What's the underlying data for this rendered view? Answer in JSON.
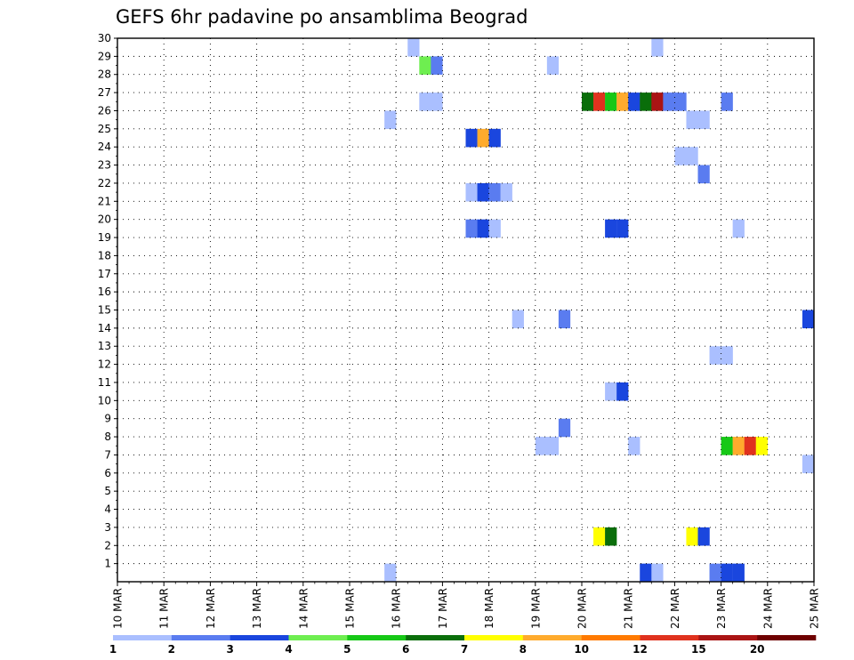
{
  "chart_data": {
    "type": "heatmap",
    "title": "GEFS 6hr padavine po ansamblima Beograd",
    "xlabel": "",
    "ylabel": "",
    "x_tick_labels": [
      "10 MAR",
      "11 MAR",
      "12 MAR",
      "13 MAR",
      "14 MAR",
      "15 MAR",
      "16 MAR",
      "17 MAR",
      "18 MAR",
      "19 MAR",
      "20 MAR",
      "21 MAR",
      "22 MAR",
      "23 MAR",
      "24 MAR",
      "25 MAR"
    ],
    "xlim": [
      0,
      60
    ],
    "ylim": [
      0,
      30
    ],
    "y_ticks": [
      1,
      2,
      3,
      4,
      5,
      6,
      7,
      8,
      9,
      10,
      11,
      12,
      13,
      14,
      15,
      16,
      17,
      18,
      19,
      20,
      21,
      22,
      23,
      24,
      25,
      26,
      27,
      28,
      29,
      30
    ],
    "grid": true,
    "colorbar": {
      "levels": [
        "1",
        "2",
        "3",
        "4",
        "5",
        "6",
        "7",
        "8",
        "10",
        "12",
        "15",
        "20"
      ],
      "colors": [
        "#aabfff",
        "#5a7cf0",
        "#1a46de",
        "#6eee50",
        "#16c816",
        "#0a6e0a",
        "#ffff00",
        "#ffab2d",
        "#ff7a00",
        "#e0321e",
        "#aa1414",
        "#6e0000"
      ]
    },
    "cells": [
      {
        "x": 25,
        "y": 29,
        "c": 0
      },
      {
        "x": 46,
        "y": 29,
        "c": 0
      },
      {
        "x": 26,
        "y": 28,
        "c": 3
      },
      {
        "x": 27,
        "y": 28,
        "c": 1
      },
      {
        "x": 37,
        "y": 28,
        "c": 0
      },
      {
        "x": 26,
        "y": 26,
        "c": 0
      },
      {
        "x": 27,
        "y": 26,
        "c": 0
      },
      {
        "x": 40,
        "y": 26,
        "c": 5
      },
      {
        "x": 41,
        "y": 26,
        "c": 9
      },
      {
        "x": 42,
        "y": 26,
        "c": 4
      },
      {
        "x": 43,
        "y": 26,
        "c": 7
      },
      {
        "x": 44,
        "y": 26,
        "c": 2
      },
      {
        "x": 45,
        "y": 26,
        "c": 5
      },
      {
        "x": 46,
        "y": 26,
        "c": 10
      },
      {
        "x": 47,
        "y": 26,
        "c": 1
      },
      {
        "x": 48,
        "y": 26,
        "c": 1
      },
      {
        "x": 52,
        "y": 26,
        "c": 1
      },
      {
        "x": 23,
        "y": 25,
        "c": 0
      },
      {
        "x": 49,
        "y": 25,
        "c": 0
      },
      {
        "x": 50,
        "y": 25,
        "c": 0
      },
      {
        "x": 30,
        "y": 24,
        "c": 2
      },
      {
        "x": 31,
        "y": 24,
        "c": 7
      },
      {
        "x": 32,
        "y": 24,
        "c": 2
      },
      {
        "x": 48,
        "y": 23,
        "c": 0
      },
      {
        "x": 49,
        "y": 23,
        "c": 0
      },
      {
        "x": 50,
        "y": 22,
        "c": 1
      },
      {
        "x": 30,
        "y": 21,
        "c": 0
      },
      {
        "x": 31,
        "y": 21,
        "c": 2
      },
      {
        "x": 32,
        "y": 21,
        "c": 1
      },
      {
        "x": 33,
        "y": 21,
        "c": 0
      },
      {
        "x": 30,
        "y": 19,
        "c": 1
      },
      {
        "x": 31,
        "y": 19,
        "c": 2
      },
      {
        "x": 32,
        "y": 19,
        "c": 0
      },
      {
        "x": 42,
        "y": 19,
        "c": 2
      },
      {
        "x": 43,
        "y": 19,
        "c": 2
      },
      {
        "x": 53,
        "y": 19,
        "c": 0
      },
      {
        "x": 34,
        "y": 14,
        "c": 0
      },
      {
        "x": 38,
        "y": 14,
        "c": 1
      },
      {
        "x": 59,
        "y": 14,
        "c": 2
      },
      {
        "x": 51,
        "y": 12,
        "c": 0
      },
      {
        "x": 52,
        "y": 12,
        "c": 0
      },
      {
        "x": 42,
        "y": 10,
        "c": 0
      },
      {
        "x": 43,
        "y": 10,
        "c": 2
      },
      {
        "x": 38,
        "y": 8,
        "c": 1
      },
      {
        "x": 36,
        "y": 7,
        "c": 0
      },
      {
        "x": 37,
        "y": 7,
        "c": 0
      },
      {
        "x": 44,
        "y": 7,
        "c": 0
      },
      {
        "x": 52,
        "y": 7,
        "c": 4
      },
      {
        "x": 53,
        "y": 7,
        "c": 7
      },
      {
        "x": 54,
        "y": 7,
        "c": 9
      },
      {
        "x": 55,
        "y": 7,
        "c": 6
      },
      {
        "x": 59,
        "y": 6,
        "c": 0
      },
      {
        "x": 41,
        "y": 2,
        "c": 6
      },
      {
        "x": 42,
        "y": 2,
        "c": 5
      },
      {
        "x": 49,
        "y": 2,
        "c": 6
      },
      {
        "x": 50,
        "y": 2,
        "c": 2
      },
      {
        "x": 23,
        "y": 0,
        "c": 0
      },
      {
        "x": 45,
        "y": 0,
        "c": 2
      },
      {
        "x": 46,
        "y": 0,
        "c": 0
      },
      {
        "x": 51,
        "y": 0,
        "c": 1
      },
      {
        "x": 52,
        "y": 0,
        "c": 2
      },
      {
        "x": 53,
        "y": 0,
        "c": 2
      }
    ]
  }
}
